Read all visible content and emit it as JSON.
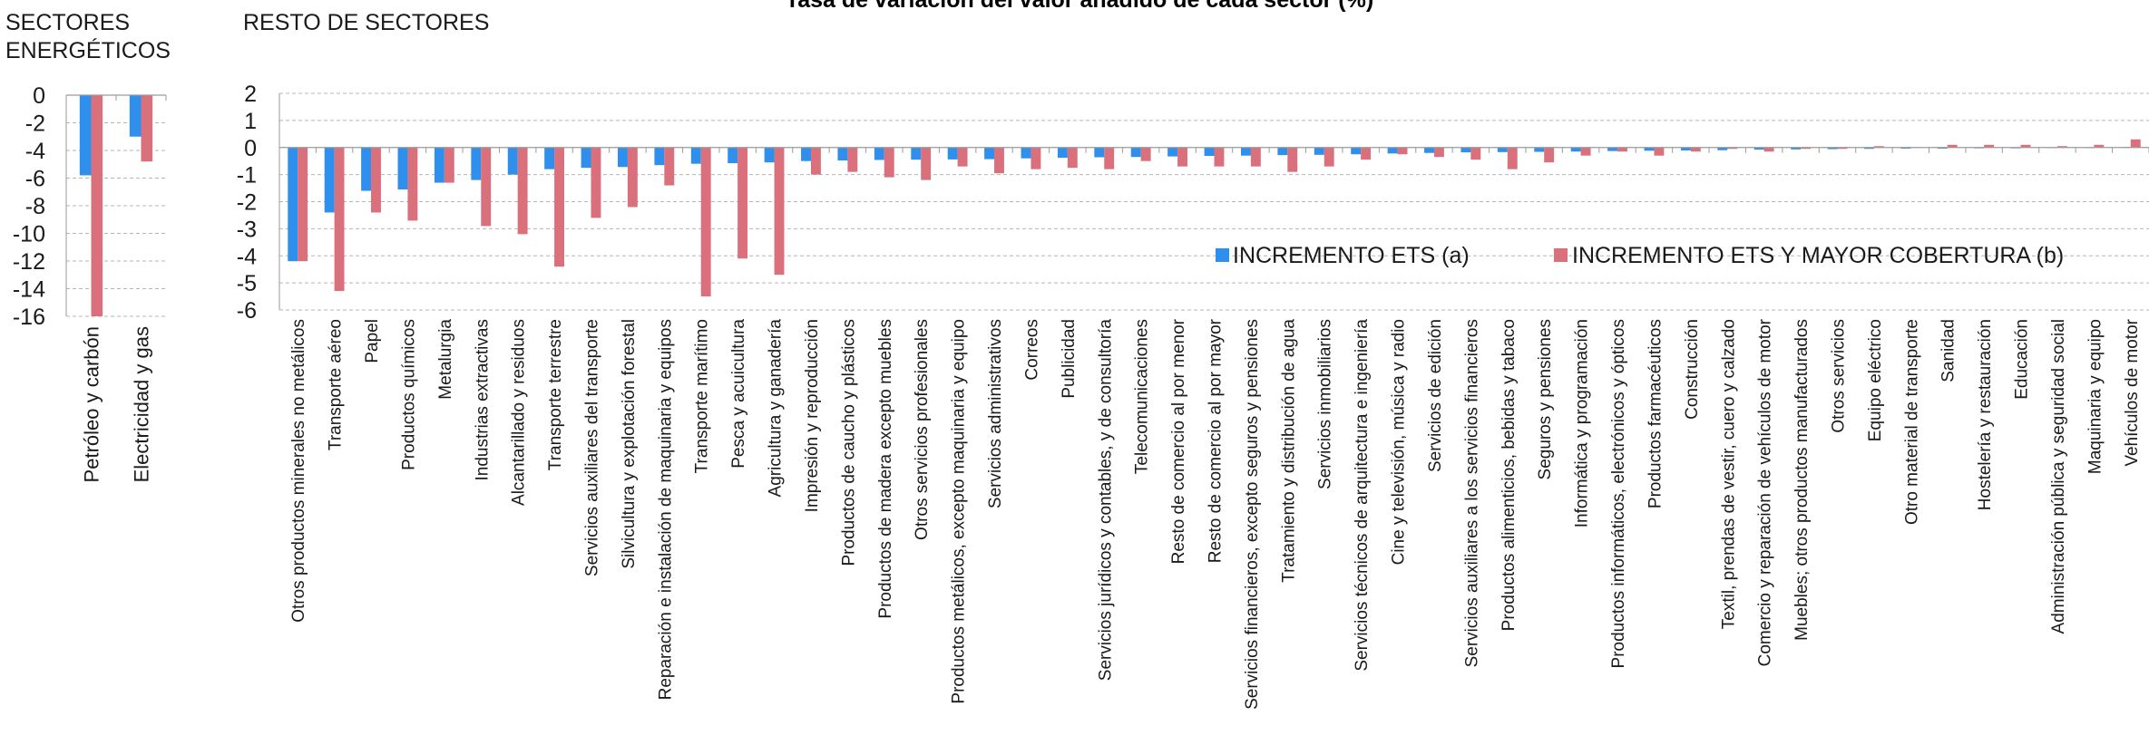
{
  "title": "Tasa de variación del valor añadido de cada sector (%)",
  "colors": {
    "series_a": "#2e8fec",
    "series_b": "#d9707c",
    "grid": "#b5b5b5",
    "axis": "#9a9a9a"
  },
  "chart_data": [
    {
      "type": "bar",
      "title": "SECTORES ENERGÉTICOS",
      "title_lines": [
        "SECTORES",
        "ENERGÉTICOS"
      ],
      "categories": [
        "Petróleo y carbón",
        "Electricidad y gas"
      ],
      "series": [
        {
          "name": "INCREMENTO ETS (a)",
          "values": [
            -5.8,
            -3.0
          ]
        },
        {
          "name": "INCREMENTO ETS Y MAYOR COBERTURA (b)",
          "values": [
            -16.0,
            -4.8
          ]
        }
      ],
      "ylim": [
        -16,
        0
      ],
      "yticks": [
        0,
        -2,
        -4,
        -6,
        -8,
        -10,
        -12,
        -14,
        -16
      ],
      "grid": true
    },
    {
      "type": "bar",
      "title": "RESTO DE SECTORES",
      "categories": [
        "Otros productos minerales no metálicos",
        "Transporte aéreo",
        "Papel",
        "Productos químicos",
        "Metalurgia",
        "Industrias extractivas",
        "Alcantarillado y residuos",
        "Transporte terrestre",
        "Servicios auxiliares del transporte",
        "Silvicultura y explotación forestal",
        "Reparación e instalación de maquinaria y equipos",
        "Transporte marítimo",
        "Pesca y acuicultura",
        "Agricultura y ganadería",
        "Impresión y reproducción",
        "Productos de caucho y plásticos",
        "Productos de madera excepto muebles",
        "Otros servicios profesionales",
        "Productos metálicos, excepto maquinaria y equipo",
        "Servicios administrativos",
        "Correos",
        "Publicidad",
        "Servicios jurídicos y contables, y de consultoría",
        "Telecomunicaciones",
        "Resto de comercio al por menor",
        "Resto de comercio al por mayor",
        "Servicios financieros, excepto seguros y pensiones",
        "Tratamiento y distribución de agua",
        "Servicios inmobiliarios",
        "Servicios técnicos de arquitectura e ingeniería",
        "Cine y televisión, música y radio",
        "Servicios de edición",
        "Servicios auxiliares a los servicios financieros",
        "Productos alimenticios, bebidas y tabaco",
        "Seguros y pensiones",
        "Informática y programación",
        "Productos informáticos, electrónicos y ópticos",
        "Productos farmacéuticos",
        "Construcción",
        "Textil, prendas de vestir, cuero y calzado",
        "Comercio y reparación de vehículos de motor",
        "Muebles; otros productos manufacturados",
        "Otros servicios",
        "Equipo eléctrico",
        "Otro material de transporte",
        "Sanidad",
        "Hostelería y restauración",
        "Educación",
        "Administración pública y seguridad social",
        "Maquinaria y equipo",
        "Vehículos de motor"
      ],
      "series": [
        {
          "name": "INCREMENTO ETS (a)",
          "values": [
            -4.2,
            -2.4,
            -1.6,
            -1.55,
            -1.3,
            -1.2,
            -1.0,
            -0.8,
            -0.75,
            -0.72,
            -0.65,
            -0.6,
            -0.58,
            -0.55,
            -0.5,
            -0.48,
            -0.46,
            -0.45,
            -0.44,
            -0.43,
            -0.4,
            -0.38,
            -0.36,
            -0.35,
            -0.33,
            -0.31,
            -0.3,
            -0.28,
            -0.27,
            -0.25,
            -0.22,
            -0.2,
            -0.18,
            -0.17,
            -0.16,
            -0.15,
            -0.13,
            -0.12,
            -0.11,
            -0.1,
            -0.08,
            -0.07,
            -0.06,
            -0.05,
            -0.04,
            -0.04,
            -0.03,
            -0.03,
            -0.02,
            -0.02,
            0.02
          ]
        },
        {
          "name": "INCREMENTO ETS Y MAYOR COBERTURA (b)",
          "values": [
            -4.2,
            -5.3,
            -2.4,
            -2.7,
            -1.3,
            -2.9,
            -3.2,
            -4.4,
            -2.6,
            -2.2,
            -1.4,
            -5.5,
            -4.1,
            -4.7,
            -1.0,
            -0.9,
            -1.1,
            -1.2,
            -0.7,
            -0.95,
            -0.8,
            -0.75,
            -0.8,
            -0.5,
            -0.7,
            -0.7,
            -0.7,
            -0.9,
            -0.7,
            -0.45,
            -0.25,
            -0.35,
            -0.45,
            -0.8,
            -0.55,
            -0.3,
            -0.15,
            -0.3,
            -0.15,
            -0.05,
            -0.15,
            -0.05,
            -0.05,
            0.05,
            0.0,
            0.1,
            0.1,
            0.1,
            0.05,
            0.1,
            0.3
          ]
        }
      ],
      "ylim": [
        -6,
        2
      ],
      "yticks": [
        2,
        1,
        0,
        -1,
        -2,
        -3,
        -4,
        -5,
        -6
      ],
      "grid": true,
      "legend": "inside-right"
    }
  ]
}
